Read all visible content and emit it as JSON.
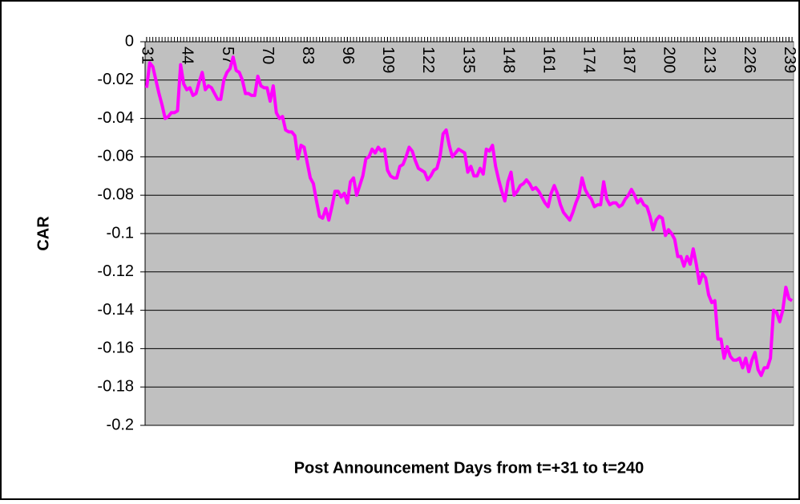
{
  "chart_data": {
    "type": "line",
    "xlabel": "Post Announcement Days from t=+31 to t=240",
    "ylabel": "CAR",
    "x": [
      31,
      32,
      33,
      34,
      35,
      36,
      37,
      38,
      39,
      40,
      41,
      42,
      43,
      44,
      45,
      46,
      47,
      48,
      49,
      50,
      51,
      52,
      53,
      54,
      55,
      56,
      57,
      58,
      59,
      60,
      61,
      62,
      63,
      64,
      65,
      66,
      67,
      68,
      69,
      70,
      71,
      72,
      73,
      74,
      75,
      76,
      77,
      78,
      79,
      80,
      81,
      82,
      83,
      84,
      85,
      86,
      87,
      88,
      89,
      90,
      91,
      92,
      93,
      94,
      95,
      96,
      97,
      98,
      99,
      100,
      101,
      102,
      103,
      104,
      105,
      106,
      107,
      108,
      109,
      110,
      111,
      112,
      113,
      114,
      115,
      116,
      117,
      118,
      119,
      120,
      121,
      122,
      123,
      124,
      125,
      126,
      127,
      128,
      129,
      130,
      131,
      132,
      133,
      134,
      135,
      136,
      137,
      138,
      139,
      140,
      141,
      142,
      143,
      144,
      145,
      146,
      147,
      148,
      149,
      150,
      151,
      152,
      153,
      154,
      155,
      156,
      157,
      158,
      159,
      160,
      161,
      162,
      163,
      164,
      165,
      166,
      167,
      168,
      169,
      170,
      171,
      172,
      173,
      174,
      175,
      176,
      177,
      178,
      179,
      180,
      181,
      182,
      183,
      184,
      185,
      186,
      187,
      188,
      189,
      190,
      191,
      192,
      193,
      194,
      195,
      196,
      197,
      198,
      199,
      200,
      201,
      202,
      203,
      204,
      205,
      206,
      207,
      208,
      209,
      210,
      211,
      212,
      213,
      214,
      215,
      216,
      217,
      218,
      219,
      220,
      221,
      222,
      223,
      224,
      225,
      226,
      227,
      228,
      229,
      230,
      231,
      232,
      233,
      234,
      235,
      236,
      237,
      238,
      239,
      240
    ],
    "series": [
      {
        "name": "CAR",
        "color": "#ff00ff",
        "values": [
          -0.024,
          -0.011,
          -0.013,
          -0.02,
          -0.027,
          -0.033,
          -0.04,
          -0.039,
          -0.037,
          -0.037,
          -0.036,
          -0.012,
          -0.022,
          -0.025,
          -0.024,
          -0.028,
          -0.027,
          -0.021,
          -0.016,
          -0.025,
          -0.023,
          -0.024,
          -0.027,
          -0.03,
          -0.03,
          -0.02,
          -0.016,
          -0.014,
          -0.008,
          -0.015,
          -0.016,
          -0.02,
          -0.027,
          -0.027,
          -0.028,
          -0.028,
          -0.018,
          -0.023,
          -0.024,
          -0.024,
          -0.031,
          -0.023,
          -0.037,
          -0.04,
          -0.039,
          -0.046,
          -0.047,
          -0.047,
          -0.049,
          -0.061,
          -0.054,
          -0.055,
          -0.063,
          -0.071,
          -0.074,
          -0.083,
          -0.091,
          -0.092,
          -0.087,
          -0.093,
          -0.086,
          -0.078,
          -0.078,
          -0.081,
          -0.079,
          -0.084,
          -0.073,
          -0.071,
          -0.08,
          -0.075,
          -0.07,
          -0.061,
          -0.06,
          -0.056,
          -0.058,
          -0.055,
          -0.057,
          -0.056,
          -0.067,
          -0.07,
          -0.071,
          -0.071,
          -0.065,
          -0.064,
          -0.06,
          -0.055,
          -0.057,
          -0.062,
          -0.066,
          -0.067,
          -0.068,
          -0.072,
          -0.07,
          -0.067,
          -0.066,
          -0.06,
          -0.048,
          -0.046,
          -0.054,
          -0.06,
          -0.058,
          -0.056,
          -0.057,
          -0.058,
          -0.068,
          -0.065,
          -0.07,
          -0.07,
          -0.066,
          -0.069,
          -0.056,
          -0.057,
          -0.054,
          -0.065,
          -0.072,
          -0.078,
          -0.083,
          -0.073,
          -0.068,
          -0.08,
          -0.078,
          -0.075,
          -0.074,
          -0.072,
          -0.074,
          -0.077,
          -0.076,
          -0.078,
          -0.081,
          -0.084,
          -0.086,
          -0.079,
          -0.075,
          -0.079,
          -0.085,
          -0.089,
          -0.091,
          -0.093,
          -0.089,
          -0.084,
          -0.08,
          -0.071,
          -0.077,
          -0.08,
          -0.082,
          -0.086,
          -0.085,
          -0.085,
          -0.073,
          -0.082,
          -0.085,
          -0.084,
          -0.084,
          -0.086,
          -0.085,
          -0.082,
          -0.08,
          -0.077,
          -0.08,
          -0.084,
          -0.082,
          -0.085,
          -0.086,
          -0.091,
          -0.098,
          -0.093,
          -0.091,
          -0.092,
          -0.101,
          -0.098,
          -0.1,
          -0.103,
          -0.112,
          -0.112,
          -0.117,
          -0.112,
          -0.116,
          -0.108,
          -0.116,
          -0.126,
          -0.121,
          -0.123,
          -0.132,
          -0.136,
          -0.135,
          -0.155,
          -0.155,
          -0.165,
          -0.159,
          -0.164,
          -0.166,
          -0.166,
          -0.165,
          -0.17,
          -0.165,
          -0.172,
          -0.166,
          -0.162,
          -0.171,
          -0.174,
          -0.17,
          -0.17,
          -0.165,
          -0.14,
          -0.141,
          -0.146,
          -0.14,
          -0.128,
          -0.134,
          -0.135
        ]
      }
    ],
    "xlim": [
      30.5,
      240.5
    ],
    "xticks": [
      31,
      44,
      57,
      70,
      83,
      96,
      109,
      122,
      135,
      148,
      161,
      174,
      187,
      200,
      213,
      226,
      239
    ],
    "ylim": [
      -0.2,
      0
    ],
    "yticks": [
      0,
      -0.02,
      -0.04,
      -0.06,
      -0.08,
      -0.1,
      -0.12,
      -0.14,
      -0.16,
      -0.18,
      -0.2
    ],
    "grid": true,
    "plot_background": "#c0c0c0"
  }
}
